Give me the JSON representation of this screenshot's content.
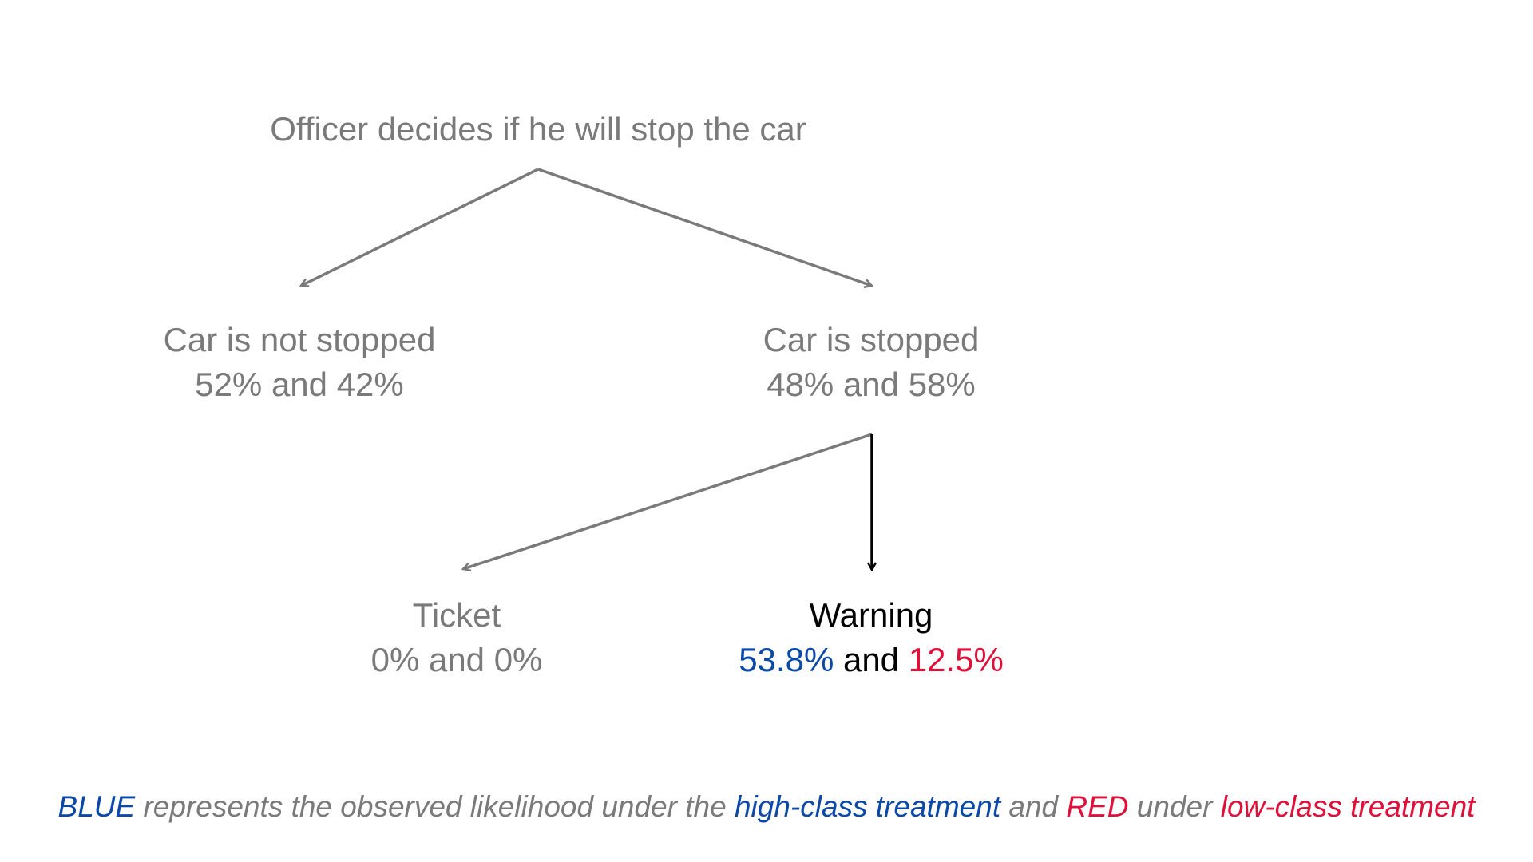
{
  "colors": {
    "gray": "#7a7a7a",
    "blue": "#0b49a8",
    "red": "#e0103a",
    "black": "#000000"
  },
  "root": {
    "label": "Officer decides if he will stop the car"
  },
  "not_stopped": {
    "label": "Car is not stopped",
    "values": "52% and 42%"
  },
  "stopped": {
    "label": "Car is stopped",
    "values": "48% and 58%"
  },
  "ticket": {
    "label": "Ticket",
    "values": "0% and 0%"
  },
  "warning": {
    "label": "Warning",
    "value_blue": "53.8%",
    "joiner": " and ",
    "value_red": "12.5%"
  },
  "legend": {
    "blue_word": "BLUE",
    "part1": " represents the observed likelihood under the ",
    "high_class": "high-class treatment",
    "part2": " and ",
    "red_word": "RED",
    "part3": " under ",
    "low_class": "low-class treatment"
  }
}
